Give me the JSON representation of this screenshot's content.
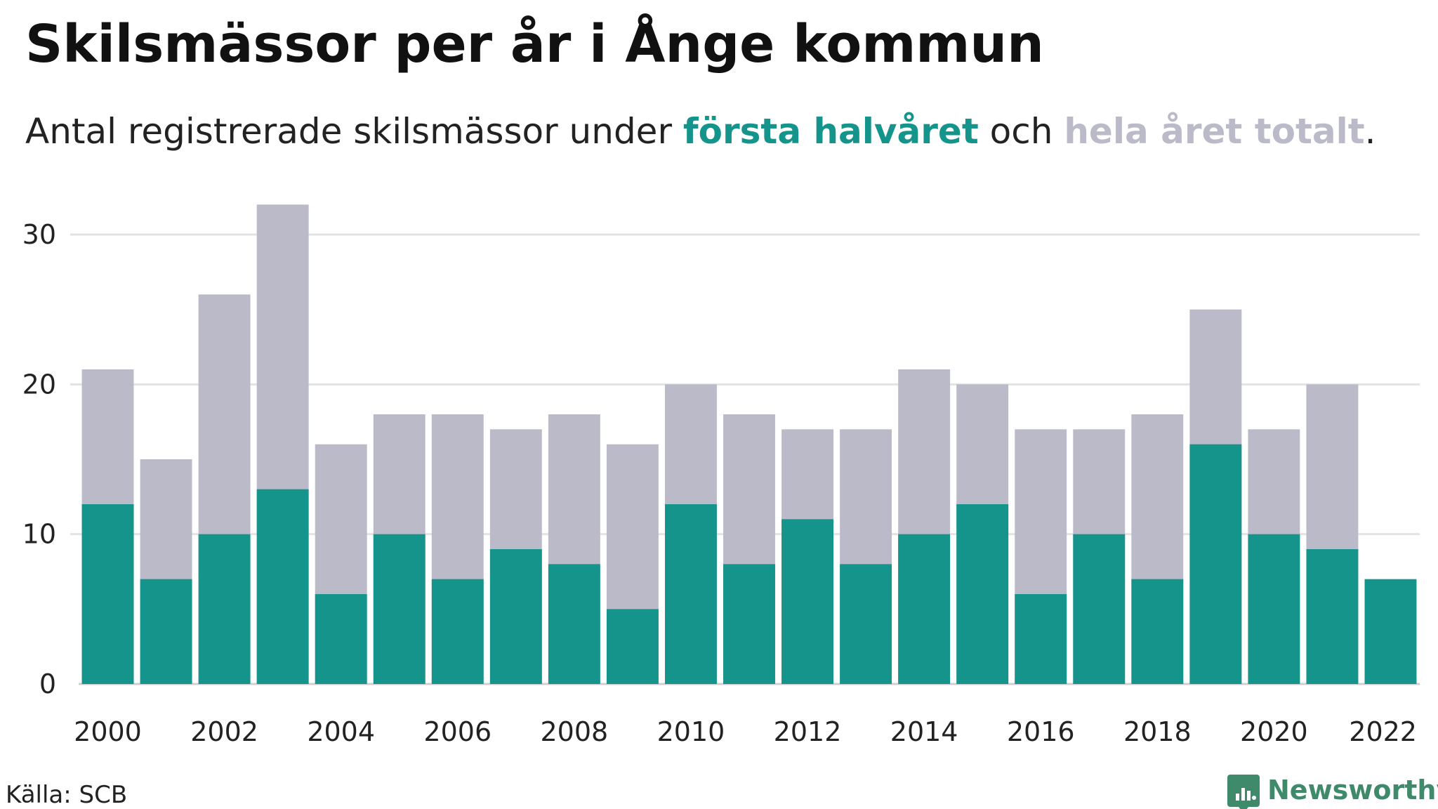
{
  "title": "Skilsmässor per år i Ånge kommun",
  "subtitle": {
    "prefix": "Antal registrerade skilsmässor under ",
    "first_half_label": "första halvåret",
    "middle": " och ",
    "total_label": "hela året totalt",
    "suffix": "."
  },
  "source": "Källa: SCB",
  "brand": {
    "name": "Newsworthy",
    "icon": "newsworthy-logo-icon",
    "color": "#3f8a6b"
  },
  "colors": {
    "first_half": "#14948a",
    "total": "#bbbac8"
  },
  "chart_data": {
    "type": "bar",
    "stacked": "overlay",
    "categories": [
      "2000",
      "2001",
      "2002",
      "2003",
      "2004",
      "2005",
      "2006",
      "2007",
      "2008",
      "2009",
      "2010",
      "2011",
      "2012",
      "2013",
      "2014",
      "2015",
      "2016",
      "2017",
      "2018",
      "2019",
      "2020",
      "2021",
      "2022"
    ],
    "x_tick_labels": [
      "2000",
      "2002",
      "2004",
      "2006",
      "2008",
      "2010",
      "2012",
      "2014",
      "2016",
      "2018",
      "2020",
      "2022"
    ],
    "series": [
      {
        "name": "hela året totalt",
        "values": [
          21,
          15,
          26,
          32,
          16,
          18,
          18,
          17,
          18,
          16,
          20,
          18,
          17,
          17,
          21,
          20,
          17,
          17,
          18,
          25,
          17,
          20,
          null
        ]
      },
      {
        "name": "första halvåret",
        "values": [
          12,
          7,
          10,
          13,
          6,
          10,
          7,
          9,
          8,
          5,
          12,
          8,
          11,
          8,
          10,
          12,
          6,
          10,
          7,
          16,
          10,
          9,
          7
        ]
      }
    ],
    "y_ticks": [
      0,
      10,
      20,
      30
    ],
    "ylim": [
      0,
      32
    ],
    "grid": true,
    "legend": "in subtitle"
  }
}
